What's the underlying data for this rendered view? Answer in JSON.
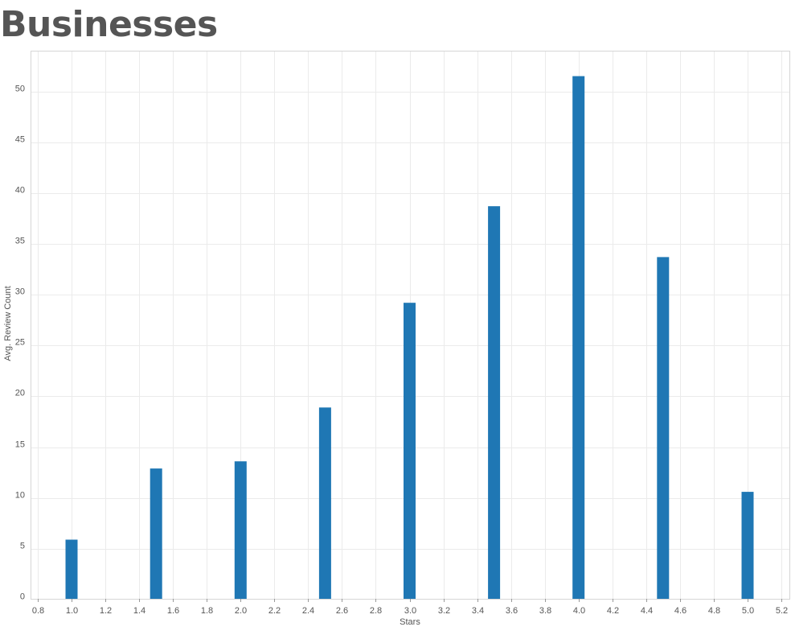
{
  "page": {
    "title": "Businesses"
  },
  "colors": {
    "bar": "#1f77b4",
    "grid": "#ebebeb",
    "frame": "#d6d6d6",
    "text": "#555555",
    "title": "#555555"
  },
  "chart_data": {
    "type": "bar",
    "title": "Businesses",
    "xlabel": "Stars",
    "ylabel": "Avg. Review Count",
    "x": [
      1.0,
      1.5,
      2.0,
      2.5,
      3.0,
      3.5,
      4.0,
      4.5,
      5.0
    ],
    "values": [
      5.9,
      12.9,
      13.6,
      18.9,
      29.2,
      38.7,
      51.5,
      33.7,
      10.6
    ],
    "xlim": [
      0.8,
      5.2
    ],
    "ylim": [
      0,
      52
    ],
    "x_ticks": [
      "0.8",
      "1.0",
      "1.2",
      "1.4",
      "1.6",
      "1.8",
      "2.0",
      "2.2",
      "2.4",
      "2.6",
      "2.8",
      "3.0",
      "3.2",
      "3.4",
      "3.6",
      "3.8",
      "4.0",
      "4.2",
      "4.4",
      "4.6",
      "4.8",
      "5.0",
      "5.2"
    ],
    "y_ticks": [
      "0",
      "5",
      "10",
      "15",
      "20",
      "25",
      "30",
      "35",
      "40",
      "45",
      "50"
    ],
    "grid": true
  }
}
